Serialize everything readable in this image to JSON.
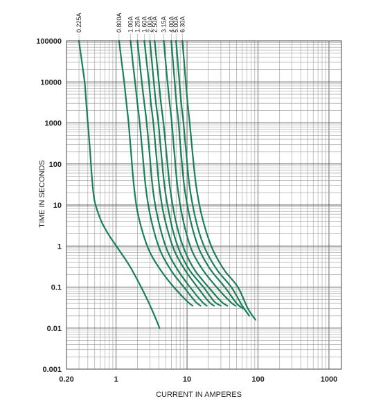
{
  "chart_data": {
    "type": "line",
    "title": "",
    "xlabel": "CURRENT IN AMPERES",
    "ylabel": "TIME IN SECONDS",
    "x_scale": "log",
    "y_scale": "log",
    "xlim": [
      0.2,
      1500
    ],
    "ylim": [
      0.001,
      100000
    ],
    "grid": true,
    "x_ticks": [
      0.2,
      1,
      10,
      100,
      1000
    ],
    "x_tick_labels": [
      "0.20",
      "1",
      "10",
      "100",
      "1000"
    ],
    "y_ticks": [
      100000,
      10000,
      1000,
      100,
      10,
      1,
      0.1,
      0.01,
      0.001
    ],
    "y_tick_labels": [
      "100000",
      "10000",
      "1000",
      "100",
      "10",
      "1",
      "0.1",
      "0.01",
      "0.001"
    ],
    "curve_color": "#19805a",
    "series": [
      {
        "name": "0.225A",
        "points": [
          [
            0.3,
            100000
          ],
          [
            0.33,
            30000
          ],
          [
            0.36,
            10000
          ],
          [
            0.38,
            3000
          ],
          [
            0.4,
            1000
          ],
          [
            0.43,
            200
          ],
          [
            0.46,
            40
          ],
          [
            0.5,
            12
          ],
          [
            0.62,
            4
          ],
          [
            0.8,
            1.8
          ],
          [
            1.1,
            0.8
          ],
          [
            1.6,
            0.3
          ],
          [
            2.5,
            0.07
          ],
          [
            3.3,
            0.025
          ],
          [
            4.1,
            0.01
          ]
        ]
      },
      {
        "name": "0.800A",
        "points": [
          [
            1.1,
            100000
          ],
          [
            1.2,
            30000
          ],
          [
            1.3,
            10000
          ],
          [
            1.4,
            3000
          ],
          [
            1.5,
            1000
          ],
          [
            1.62,
            200
          ],
          [
            1.78,
            30
          ],
          [
            2.0,
            7
          ],
          [
            2.4,
            2
          ],
          [
            3.0,
            0.7
          ],
          [
            4.3,
            0.25
          ],
          [
            6.5,
            0.1
          ],
          [
            10,
            0.045
          ],
          [
            12,
            0.035
          ]
        ]
      },
      {
        "name": "1.00A",
        "points": [
          [
            1.6,
            100000
          ],
          [
            1.72,
            30000
          ],
          [
            1.85,
            10000
          ],
          [
            2.0,
            3000
          ],
          [
            2.15,
            1000
          ],
          [
            2.35,
            200
          ],
          [
            2.6,
            30
          ],
          [
            2.95,
            7
          ],
          [
            3.5,
            2
          ],
          [
            4.3,
            0.7
          ],
          [
            6.0,
            0.25
          ],
          [
            9.0,
            0.1
          ],
          [
            13,
            0.045
          ],
          [
            15.5,
            0.035
          ]
        ]
      },
      {
        "name": "1.25A",
        "points": [
          [
            2.0,
            100000
          ],
          [
            2.15,
            30000
          ],
          [
            2.3,
            10000
          ],
          [
            2.5,
            3000
          ],
          [
            2.7,
            1000
          ],
          [
            2.95,
            200
          ],
          [
            3.25,
            30
          ],
          [
            3.7,
            7
          ],
          [
            4.4,
            2
          ],
          [
            5.4,
            0.7
          ],
          [
            7.5,
            0.25
          ],
          [
            11,
            0.1
          ],
          [
            16,
            0.045
          ],
          [
            19,
            0.035
          ]
        ]
      },
      {
        "name": "1.60A",
        "points": [
          [
            2.5,
            100000
          ],
          [
            2.7,
            30000
          ],
          [
            2.9,
            10000
          ],
          [
            3.1,
            3000
          ],
          [
            3.35,
            1000
          ],
          [
            3.65,
            200
          ],
          [
            4.05,
            30
          ],
          [
            4.6,
            7
          ],
          [
            5.5,
            2
          ],
          [
            6.8,
            0.7
          ],
          [
            9.5,
            0.25
          ],
          [
            14,
            0.1
          ],
          [
            20,
            0.045
          ],
          [
            24,
            0.035
          ]
        ]
      },
      {
        "name": "2.00A",
        "points": [
          [
            3.0,
            100000
          ],
          [
            3.2,
            30000
          ],
          [
            3.4,
            10000
          ],
          [
            3.65,
            3000
          ],
          [
            3.95,
            1000
          ],
          [
            4.3,
            200
          ],
          [
            4.8,
            30
          ],
          [
            5.5,
            7
          ],
          [
            6.5,
            2
          ],
          [
            8.0,
            0.7
          ],
          [
            11,
            0.25
          ],
          [
            17,
            0.1
          ],
          [
            24,
            0.045
          ],
          [
            30,
            0.035
          ]
        ]
      },
      {
        "name": "2.50A",
        "points": [
          [
            3.5,
            100000
          ],
          [
            3.75,
            30000
          ],
          [
            4.0,
            10000
          ],
          [
            4.3,
            3000
          ],
          [
            4.65,
            1000
          ],
          [
            5.1,
            200
          ],
          [
            5.7,
            30
          ],
          [
            6.5,
            7
          ],
          [
            7.7,
            2
          ],
          [
            9.5,
            0.7
          ],
          [
            13,
            0.25
          ],
          [
            20,
            0.1
          ],
          [
            30,
            0.045
          ],
          [
            37,
            0.035
          ]
        ]
      },
      {
        "name": "3.15A",
        "points": [
          [
            4.7,
            100000
          ],
          [
            5.0,
            30000
          ],
          [
            5.3,
            10000
          ],
          [
            5.7,
            3000
          ],
          [
            6.1,
            1000
          ],
          [
            6.6,
            200
          ],
          [
            7.3,
            30
          ],
          [
            8.3,
            7
          ],
          [
            9.8,
            2
          ],
          [
            12,
            0.7
          ],
          [
            17,
            0.25
          ],
          [
            26,
            0.1
          ],
          [
            40,
            0.045
          ],
          [
            48,
            0.035
          ]
        ]
      },
      {
        "name": "4.00A",
        "points": [
          [
            6.0,
            100000
          ],
          [
            6.35,
            30000
          ],
          [
            6.7,
            10000
          ],
          [
            7.1,
            3000
          ],
          [
            7.6,
            1000
          ],
          [
            8.2,
            200
          ],
          [
            9.1,
            30
          ],
          [
            10.5,
            7
          ],
          [
            12.5,
            2
          ],
          [
            15.5,
            0.7
          ],
          [
            22,
            0.25
          ],
          [
            34,
            0.1
          ],
          [
            50,
            0.04
          ],
          [
            62,
            0.03
          ]
        ]
      },
      {
        "name": "5.00A",
        "points": [
          [
            7.0,
            100000
          ],
          [
            7.4,
            30000
          ],
          [
            7.8,
            10000
          ],
          [
            8.3,
            3000
          ],
          [
            8.9,
            1000
          ],
          [
            9.7,
            200
          ],
          [
            10.8,
            30
          ],
          [
            12.5,
            7
          ],
          [
            15,
            2
          ],
          [
            19,
            0.7
          ],
          [
            27,
            0.25
          ],
          [
            42,
            0.1
          ],
          [
            60,
            0.035
          ],
          [
            75,
            0.02
          ]
        ]
      },
      {
        "name": "6.30A",
        "points": [
          [
            8.6,
            100000
          ],
          [
            9.1,
            30000
          ],
          [
            9.6,
            10000
          ],
          [
            10.2,
            3000
          ],
          [
            10.9,
            1000
          ],
          [
            11.9,
            200
          ],
          [
            13.4,
            30
          ],
          [
            15.6,
            7
          ],
          [
            19,
            2
          ],
          [
            24,
            0.7
          ],
          [
            34,
            0.25
          ],
          [
            52,
            0.1
          ],
          [
            72,
            0.03
          ],
          [
            92,
            0.016
          ]
        ]
      }
    ]
  }
}
